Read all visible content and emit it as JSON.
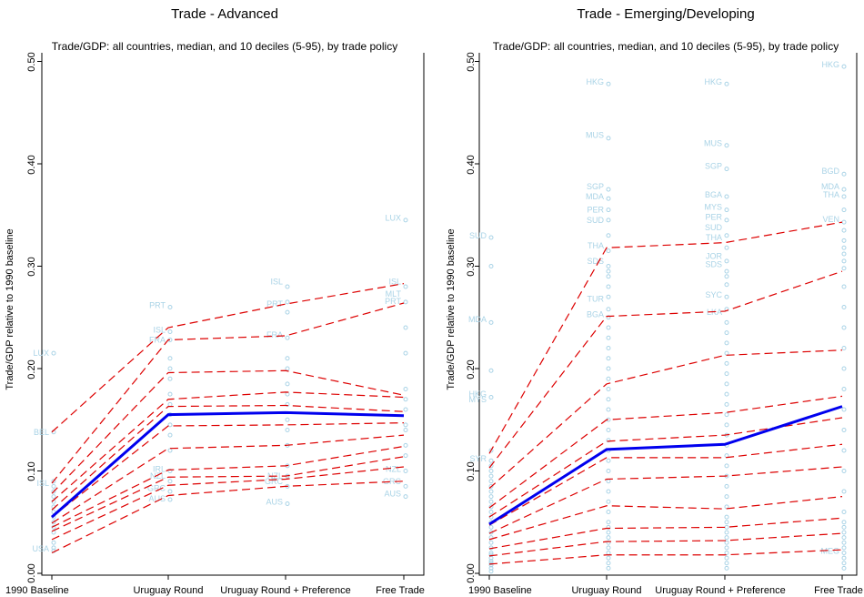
{
  "chart_data": [
    {
      "type": "line",
      "title": "Trade - Advanced",
      "subtitle": "Trade/GDP: all countries, median, and 10 deciles (5-95), by trade policy",
      "ylabel": "Trade/GDP relative to 1990 baseline",
      "xlabel": "",
      "categories": [
        "1990 Baseline",
        "Uruguay Round",
        "Uruguay Round + Preference",
        "Free Trade"
      ],
      "yticks": [
        "0.00",
        "0.10",
        "0.20",
        "0.30",
        "0.40",
        "0.50"
      ],
      "ylim": [
        0.0,
        0.5
      ],
      "legend": "none",
      "grid": false,
      "median_color": "#0000ee",
      "decile_color": "#dd0000",
      "point_color": "#a9d3e6",
      "median": [
        0.055,
        0.155,
        0.157,
        0.154
      ],
      "deciles": [
        [
          0.02,
          0.076,
          0.085,
          0.09
        ],
        [
          0.033,
          0.086,
          0.092,
          0.104
        ],
        [
          0.041,
          0.094,
          0.095,
          0.114
        ],
        [
          0.045,
          0.101,
          0.105,
          0.124
        ],
        [
          0.049,
          0.122,
          0.125,
          0.135
        ],
        [
          0.055,
          0.144,
          0.145,
          0.147
        ],
        [
          0.062,
          0.163,
          0.164,
          0.158
        ],
        [
          0.07,
          0.17,
          0.177,
          0.172
        ],
        [
          0.078,
          0.196,
          0.198,
          0.174
        ],
        [
          0.088,
          0.228,
          0.232,
          0.264
        ],
        [
          0.138,
          0.24,
          0.263,
          0.283
        ]
      ],
      "points": [
        [
          0.215,
          0.138,
          0.09,
          0.085,
          0.08,
          0.075,
          0.07,
          0.065,
          0.06,
          0.055,
          0.05,
          0.045,
          0.04,
          0.03,
          0.025,
          0.022
        ],
        [
          0.26,
          0.236,
          0.228,
          0.21,
          0.2,
          0.19,
          0.175,
          0.165,
          0.155,
          0.145,
          0.135,
          0.12,
          0.1,
          0.09,
          0.08,
          0.072
        ],
        [
          0.28,
          0.265,
          0.255,
          0.23,
          0.21,
          0.2,
          0.185,
          0.175,
          0.165,
          0.15,
          0.14,
          0.125,
          0.105,
          0.095,
          0.085,
          0.068
        ],
        [
          0.345,
          0.28,
          0.265,
          0.24,
          0.215,
          0.18,
          0.17,
          0.16,
          0.145,
          0.14,
          0.125,
          0.115,
          0.1,
          0.085,
          0.075
        ]
      ],
      "point_labels": [
        [
          {
            "text": "LUX",
            "y": 0.215
          },
          {
            "text": "BEL",
            "y": 0.138
          },
          {
            "text": "ISL",
            "y": 0.088
          },
          {
            "text": "USA",
            "y": 0.024
          }
        ],
        [
          {
            "text": "PRT",
            "y": 0.262
          },
          {
            "text": "ISL",
            "y": 0.238
          },
          {
            "text": "FRA",
            "y": 0.228
          },
          {
            "text": "IRL",
            "y": 0.102
          },
          {
            "text": "NZL",
            "y": 0.095
          },
          {
            "text": "GRC",
            "y": 0.083
          },
          {
            "text": "AUS",
            "y": 0.073
          }
        ],
        [
          {
            "text": "ISL",
            "y": 0.285
          },
          {
            "text": "PRT",
            "y": 0.263
          },
          {
            "text": "FRA",
            "y": 0.233
          },
          {
            "text": "NZL",
            "y": 0.095
          },
          {
            "text": "GRC",
            "y": 0.09
          },
          {
            "text": "AUS",
            "y": 0.07
          }
        ],
        [
          {
            "text": "LUX",
            "y": 0.347
          },
          {
            "text": "ISL",
            "y": 0.285
          },
          {
            "text": "MLT",
            "y": 0.273
          },
          {
            "text": "PRT",
            "y": 0.266
          },
          {
            "text": "NZL",
            "y": 0.102
          },
          {
            "text": "GRC",
            "y": 0.09
          },
          {
            "text": "AUS",
            "y": 0.078
          }
        ]
      ]
    },
    {
      "type": "line",
      "title": "Trade - Emerging/Developing",
      "subtitle": "Trade/GDP: all countries, median, and 10 deciles (5-95), by trade policy",
      "ylabel": "Trade/GDP relative to 1990 baseline",
      "xlabel": "",
      "categories": [
        "1990 Baseline",
        "Uruguay Round",
        "Uruguay Round + Preference",
        "Free Trade"
      ],
      "yticks": [
        "0.00",
        "0.10",
        "0.20",
        "0.30",
        "0.40",
        "0.50"
      ],
      "ylim": [
        0.0,
        0.5
      ],
      "legend": "none",
      "grid": false,
      "median_color": "#0000ee",
      "decile_color": "#dd0000",
      "point_color": "#a9d3e6",
      "median": [
        0.048,
        0.121,
        0.126,
        0.163
      ],
      "deciles": [
        [
          0.009,
          0.018,
          0.018,
          0.023
        ],
        [
          0.017,
          0.031,
          0.032,
          0.039
        ],
        [
          0.024,
          0.044,
          0.045,
          0.054
        ],
        [
          0.033,
          0.066,
          0.063,
          0.075
        ],
        [
          0.039,
          0.092,
          0.095,
          0.104
        ],
        [
          0.047,
          0.113,
          0.113,
          0.126
        ],
        [
          0.055,
          0.129,
          0.135,
          0.152
        ],
        [
          0.064,
          0.15,
          0.157,
          0.173
        ],
        [
          0.083,
          0.185,
          0.213,
          0.218
        ],
        [
          0.103,
          0.251,
          0.256,
          0.295
        ],
        [
          0.117,
          0.318,
          0.323,
          0.343
        ]
      ],
      "points": [
        [
          0.328,
          0.3,
          0.245,
          0.198,
          0.172,
          0.12,
          0.11,
          0.105,
          0.1,
          0.095,
          0.09,
          0.085,
          0.08,
          0.075,
          0.07,
          0.065,
          0.06,
          0.055,
          0.05,
          0.045,
          0.04,
          0.035,
          0.03,
          0.025,
          0.02,
          0.018,
          0.015,
          0.012,
          0.01,
          0.008,
          0.005,
          0.002
        ],
        [
          0.478,
          0.425,
          0.375,
          0.366,
          0.355,
          0.345,
          0.33,
          0.315,
          0.3,
          0.295,
          0.29,
          0.28,
          0.27,
          0.258,
          0.25,
          0.24,
          0.23,
          0.22,
          0.21,
          0.2,
          0.19,
          0.18,
          0.17,
          0.16,
          0.15,
          0.14,
          0.13,
          0.12,
          0.11,
          0.1,
          0.09,
          0.08,
          0.07,
          0.06,
          0.05,
          0.045,
          0.04,
          0.035,
          0.03,
          0.025,
          0.02,
          0.015,
          0.01,
          0.005
        ],
        [
          0.478,
          0.418,
          0.395,
          0.368,
          0.355,
          0.345,
          0.33,
          0.318,
          0.305,
          0.295,
          0.29,
          0.282,
          0.27,
          0.258,
          0.245,
          0.235,
          0.225,
          0.215,
          0.205,
          0.195,
          0.185,
          0.175,
          0.165,
          0.155,
          0.145,
          0.135,
          0.125,
          0.115,
          0.105,
          0.095,
          0.085,
          0.075,
          0.065,
          0.055,
          0.05,
          0.045,
          0.04,
          0.035,
          0.03,
          0.025,
          0.02,
          0.015,
          0.01,
          0.005
        ],
        [
          0.495,
          0.39,
          0.375,
          0.368,
          0.355,
          0.343,
          0.335,
          0.325,
          0.318,
          0.312,
          0.305,
          0.298,
          0.28,
          0.26,
          0.24,
          0.22,
          0.2,
          0.18,
          0.16,
          0.14,
          0.12,
          0.1,
          0.08,
          0.06,
          0.05,
          0.045,
          0.04,
          0.035,
          0.03,
          0.025,
          0.02,
          0.015,
          0.01,
          0.005
        ]
      ],
      "point_labels": [
        [
          {
            "text": "SUD",
            "y": 0.33
          },
          {
            "text": "MDA",
            "y": 0.248
          },
          {
            "text": "HKG",
            "y": 0.175
          },
          {
            "text": "MYS",
            "y": 0.17
          },
          {
            "text": "SYR",
            "y": 0.112
          }
        ],
        [
          {
            "text": "HKG",
            "y": 0.48
          },
          {
            "text": "MUS",
            "y": 0.428
          },
          {
            "text": "SGP",
            "y": 0.378
          },
          {
            "text": "MDA",
            "y": 0.368
          },
          {
            "text": "PER",
            "y": 0.355
          },
          {
            "text": "SUD",
            "y": 0.345
          },
          {
            "text": "THA",
            "y": 0.32
          },
          {
            "text": "SDS",
            "y": 0.305
          },
          {
            "text": "TUR",
            "y": 0.268
          },
          {
            "text": "BGA",
            "y": 0.253
          }
        ],
        [
          {
            "text": "HKG",
            "y": 0.48
          },
          {
            "text": "MUS",
            "y": 0.42
          },
          {
            "text": "SGP",
            "y": 0.398
          },
          {
            "text": "BGA",
            "y": 0.37
          },
          {
            "text": "MYS",
            "y": 0.358
          },
          {
            "text": "PER",
            "y": 0.348
          },
          {
            "text": "SUD",
            "y": 0.338
          },
          {
            "text": "THA",
            "y": 0.328
          },
          {
            "text": "JOR",
            "y": 0.31
          },
          {
            "text": "SDS",
            "y": 0.302
          },
          {
            "text": "SYC",
            "y": 0.272
          },
          {
            "text": "LKA",
            "y": 0.255
          }
        ],
        [
          {
            "text": "HKG",
            "y": 0.497
          },
          {
            "text": "BGD",
            "y": 0.393
          },
          {
            "text": "MDA",
            "y": 0.378
          },
          {
            "text": "THA",
            "y": 0.37
          },
          {
            "text": "VEN",
            "y": 0.346
          },
          {
            "text": "MEG",
            "y": 0.022
          }
        ]
      ]
    }
  ]
}
